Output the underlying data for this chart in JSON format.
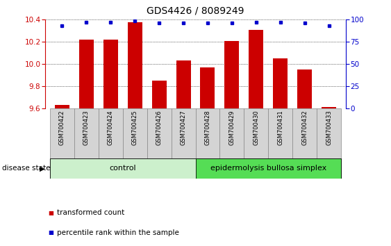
{
  "title": "GDS4426 / 8089249",
  "samples": [
    "GSM700422",
    "GSM700423",
    "GSM700424",
    "GSM700425",
    "GSM700426",
    "GSM700427",
    "GSM700428",
    "GSM700429",
    "GSM700430",
    "GSM700431",
    "GSM700432",
    "GSM700433"
  ],
  "red_values": [
    9.63,
    10.22,
    10.22,
    10.38,
    9.85,
    10.03,
    9.97,
    10.21,
    10.31,
    10.05,
    9.95,
    9.61
  ],
  "blue_values": [
    93,
    97,
    97,
    99,
    96,
    96,
    96,
    96,
    97,
    97,
    96,
    93
  ],
  "ylim_left": [
    9.6,
    10.4
  ],
  "ylim_right": [
    0,
    100
  ],
  "yticks_left": [
    9.6,
    9.8,
    10.0,
    10.2,
    10.4
  ],
  "yticks_right": [
    0,
    25,
    50,
    75,
    100
  ],
  "bar_color": "#cc0000",
  "dot_color": "#0000cc",
  "control_color": "#ccf0cc",
  "ebs_color": "#55dd55",
  "label_bg_color": "#d4d4d4",
  "control_label": "control",
  "ebs_label": "epidermolysis bullosa simplex",
  "disease_state_label": "disease state",
  "legend_red": "transformed count",
  "legend_blue": "percentile rank within the sample",
  "control_samples": 6,
  "ebs_samples": 6,
  "base_value": 9.6
}
